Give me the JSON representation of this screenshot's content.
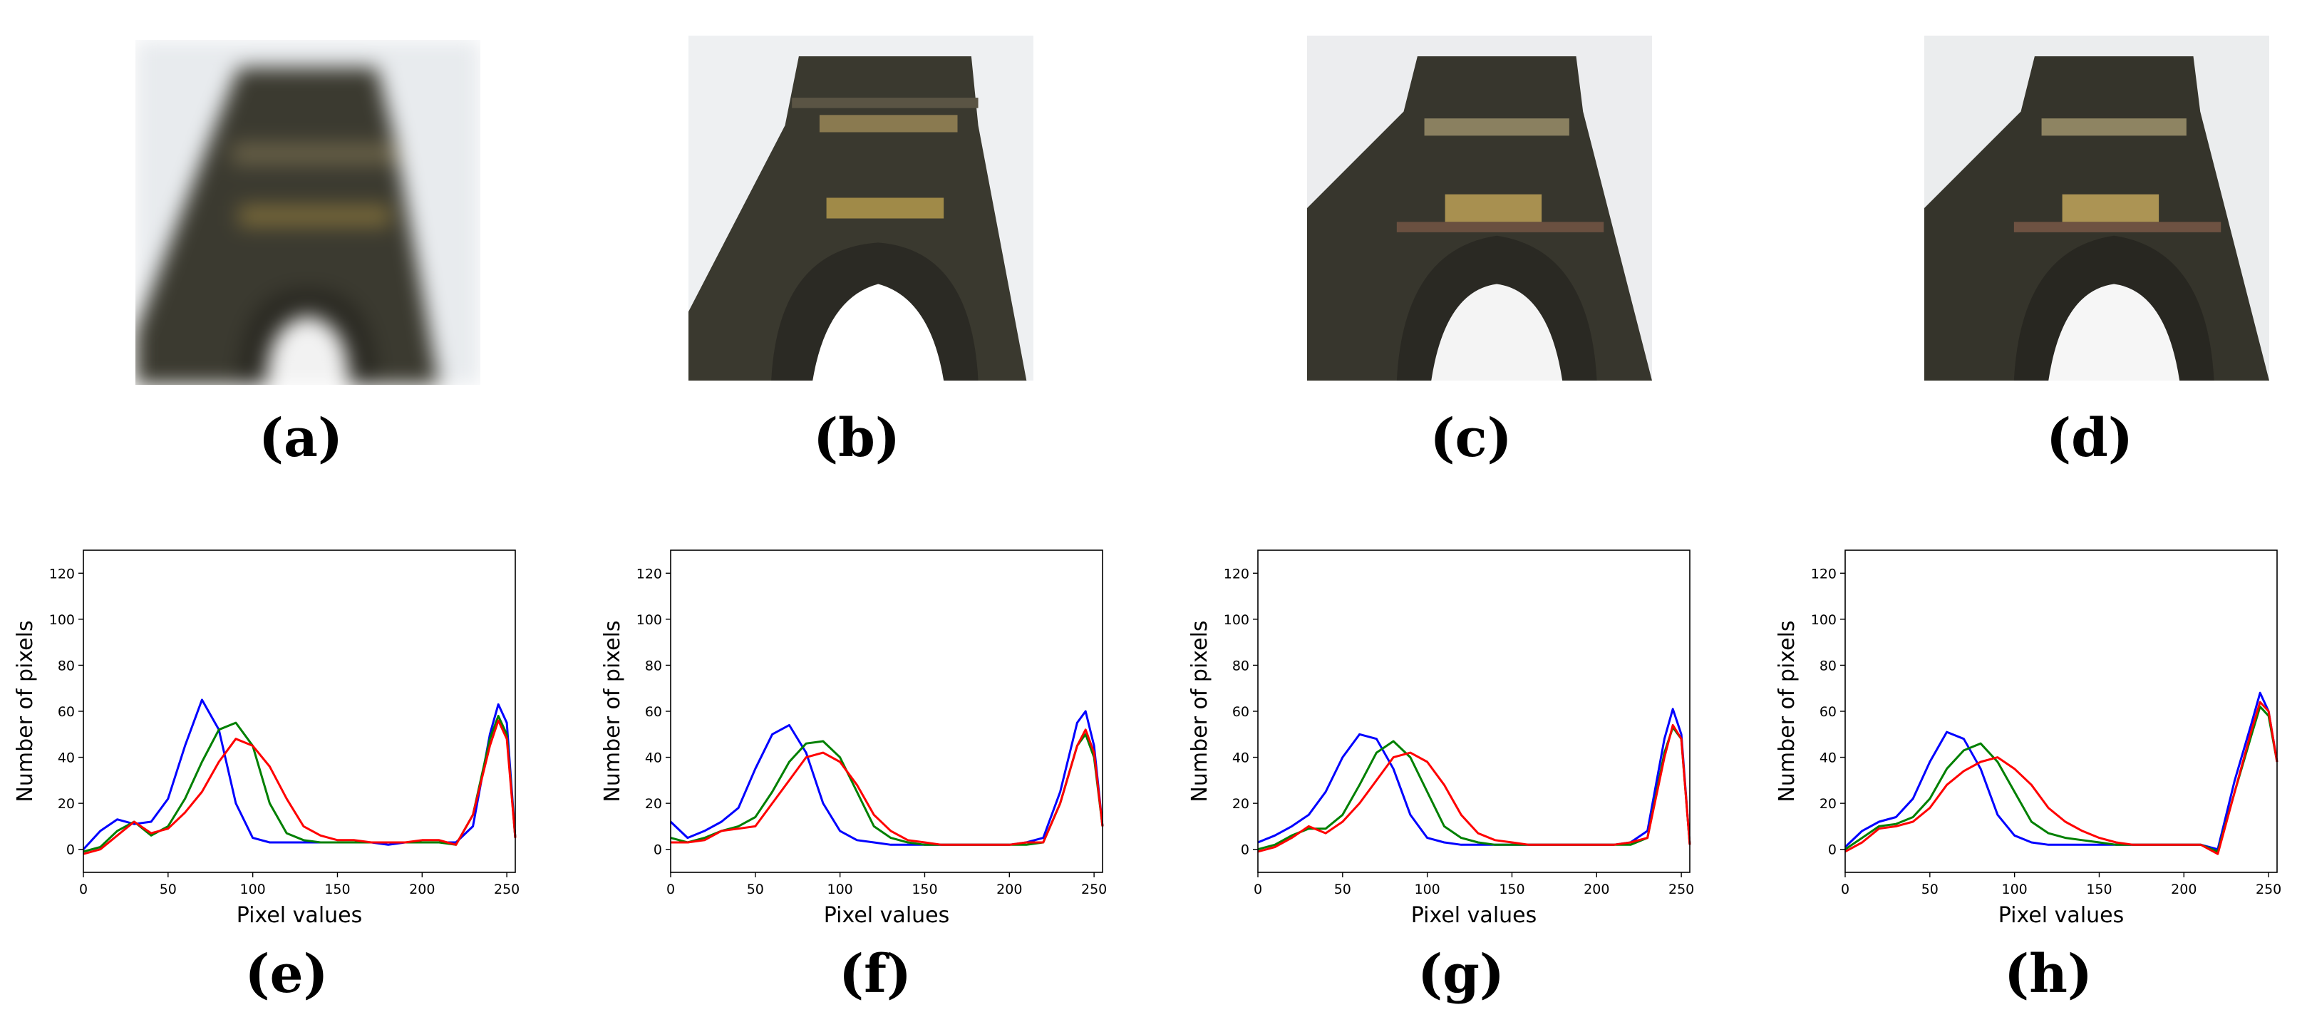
{
  "photo_captions": [
    "(a)",
    "(b)",
    "(c)",
    "(d)"
  ],
  "photos": [
    {
      "caption_index": 0,
      "style": "blurred"
    },
    {
      "caption_index": 1,
      "style": "sharp"
    },
    {
      "caption_index": 2,
      "style": "sharp"
    },
    {
      "caption_index": 3,
      "style": "sharp"
    }
  ],
  "colors": {
    "blue": "#0000ff",
    "green": "#008000",
    "red": "#ff0000",
    "stone": "#3b3a30",
    "sky": "#e9edf0"
  },
  "chart_data": [
    {
      "type": "line",
      "caption": "(e)",
      "xlabel": "Pixel values",
      "ylabel": "Number of pixels",
      "xlim": [
        0,
        255
      ],
      "ylim": [
        -10,
        130
      ],
      "xticks": [
        0,
        50,
        100,
        150,
        200,
        250
      ],
      "yticks": [
        0,
        20,
        40,
        60,
        80,
        100,
        120
      ],
      "x": [
        0,
        10,
        20,
        30,
        40,
        50,
        60,
        70,
        80,
        90,
        100,
        110,
        120,
        130,
        140,
        150,
        160,
        170,
        180,
        190,
        200,
        210,
        220,
        230,
        240,
        245,
        250,
        255
      ],
      "series": [
        {
          "color": "blue",
          "values": [
            0,
            8,
            13,
            11,
            12,
            22,
            45,
            65,
            52,
            20,
            5,
            3,
            3,
            3,
            3,
            3,
            3,
            3,
            2,
            3,
            3,
            3,
            3,
            10,
            50,
            63,
            55,
            5
          ]
        },
        {
          "color": "green",
          "values": [
            -1,
            1,
            8,
            12,
            6,
            10,
            22,
            38,
            52,
            55,
            45,
            20,
            7,
            4,
            3,
            3,
            3,
            3,
            3,
            3,
            3,
            3,
            2,
            15,
            48,
            58,
            50,
            5
          ]
        },
        {
          "color": "red",
          "values": [
            -2,
            0,
            6,
            12,
            7,
            9,
            16,
            25,
            38,
            48,
            45,
            36,
            22,
            10,
            6,
            4,
            4,
            3,
            3,
            3,
            4,
            4,
            2,
            15,
            45,
            56,
            48,
            5
          ]
        }
      ]
    },
    {
      "type": "line",
      "caption": "(f)",
      "xlabel": "Pixel values",
      "ylabel": "Number of pixels",
      "xlim": [
        0,
        255
      ],
      "ylim": [
        -10,
        130
      ],
      "xticks": [
        0,
        50,
        100,
        150,
        200,
        250
      ],
      "yticks": [
        0,
        20,
        40,
        60,
        80,
        100,
        120
      ],
      "x": [
        0,
        10,
        20,
        30,
        40,
        50,
        60,
        70,
        80,
        90,
        100,
        110,
        120,
        130,
        140,
        150,
        160,
        170,
        180,
        190,
        200,
        210,
        220,
        230,
        240,
        245,
        250,
        255
      ],
      "series": [
        {
          "color": "blue",
          "values": [
            12,
            5,
            8,
            12,
            18,
            35,
            50,
            54,
            42,
            20,
            8,
            4,
            3,
            2,
            2,
            2,
            2,
            2,
            2,
            2,
            2,
            3,
            5,
            25,
            55,
            60,
            45,
            10
          ]
        },
        {
          "color": "green",
          "values": [
            5,
            3,
            5,
            8,
            10,
            14,
            25,
            38,
            46,
            47,
            40,
            25,
            10,
            5,
            3,
            2,
            2,
            2,
            2,
            2,
            2,
            2,
            3,
            20,
            45,
            50,
            40,
            10
          ]
        },
        {
          "color": "red",
          "values": [
            3,
            3,
            4,
            8,
            9,
            10,
            20,
            30,
            40,
            42,
            38,
            28,
            15,
            8,
            4,
            3,
            2,
            2,
            2,
            2,
            2,
            3,
            3,
            20,
            45,
            52,
            42,
            10
          ]
        }
      ]
    },
    {
      "type": "line",
      "caption": "(g)",
      "xlabel": "Pixel values",
      "ylabel": "Number of pixels",
      "xlim": [
        0,
        255
      ],
      "ylim": [
        -10,
        130
      ],
      "xticks": [
        0,
        50,
        100,
        150,
        200,
        250
      ],
      "yticks": [
        0,
        20,
        40,
        60,
        80,
        100,
        120
      ],
      "x": [
        0,
        10,
        20,
        30,
        40,
        50,
        60,
        70,
        80,
        90,
        100,
        110,
        120,
        130,
        140,
        150,
        160,
        170,
        180,
        190,
        200,
        210,
        220,
        230,
        240,
        245,
        250,
        255
      ],
      "series": [
        {
          "color": "blue",
          "values": [
            3,
            6,
            10,
            15,
            25,
            40,
            50,
            48,
            35,
            15,
            5,
            3,
            2,
            2,
            2,
            2,
            2,
            2,
            2,
            2,
            2,
            2,
            3,
            8,
            48,
            61,
            50,
            2
          ]
        },
        {
          "color": "green",
          "values": [
            0,
            2,
            6,
            9,
            9,
            15,
            28,
            42,
            47,
            40,
            25,
            10,
            5,
            3,
            2,
            2,
            2,
            2,
            2,
            2,
            2,
            2,
            2,
            5,
            42,
            53,
            48,
            2
          ]
        },
        {
          "color": "red",
          "values": [
            -1,
            1,
            5,
            10,
            7,
            12,
            20,
            30,
            40,
            42,
            38,
            28,
            15,
            7,
            4,
            3,
            2,
            2,
            2,
            2,
            2,
            2,
            3,
            5,
            40,
            54,
            48,
            2
          ]
        }
      ]
    },
    {
      "type": "line",
      "caption": "(h)",
      "xlabel": "Pixel values",
      "ylabel": "Number of pixels",
      "xlim": [
        0,
        255
      ],
      "ylim": [
        -10,
        130
      ],
      "xticks": [
        0,
        50,
        100,
        150,
        200,
        250
      ],
      "yticks": [
        0,
        20,
        40,
        60,
        80,
        100,
        120
      ],
      "x": [
        0,
        10,
        20,
        30,
        40,
        50,
        60,
        70,
        80,
        90,
        100,
        110,
        120,
        130,
        140,
        150,
        160,
        170,
        180,
        190,
        200,
        210,
        220,
        230,
        240,
        245,
        250,
        255
      ],
      "series": [
        {
          "color": "blue",
          "values": [
            1,
            8,
            12,
            14,
            22,
            38,
            51,
            48,
            35,
            15,
            6,
            3,
            2,
            2,
            2,
            2,
            2,
            2,
            2,
            2,
            2,
            2,
            0,
            30,
            55,
            68,
            60,
            38
          ]
        },
        {
          "color": "green",
          "values": [
            0,
            5,
            10,
            11,
            14,
            22,
            35,
            43,
            46,
            38,
            25,
            12,
            7,
            5,
            4,
            3,
            2,
            2,
            2,
            2,
            2,
            2,
            -1,
            25,
            50,
            62,
            58,
            38
          ]
        },
        {
          "color": "red",
          "values": [
            -1,
            3,
            9,
            10,
            12,
            18,
            28,
            34,
            38,
            40,
            35,
            28,
            18,
            12,
            8,
            5,
            3,
            2,
            2,
            2,
            2,
            2,
            -2,
            25,
            52,
            64,
            60,
            38
          ]
        }
      ]
    }
  ]
}
